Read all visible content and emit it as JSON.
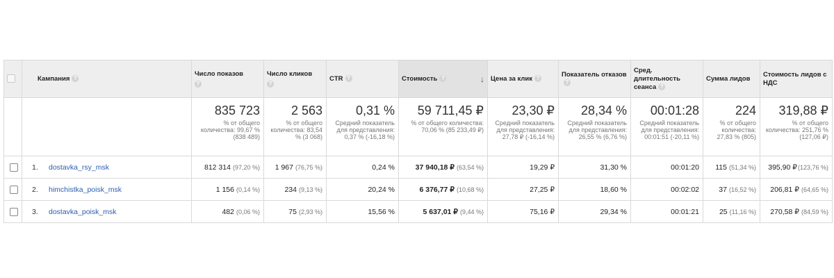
{
  "columns": {
    "campaign": "Кампания",
    "impressions": "Число показов",
    "clicks": "Число кликов",
    "ctr": "CTR",
    "cost": "Стоимость",
    "cpc": "Цена за клик",
    "bounce": "Показатель отказов",
    "duration": "Сред. длительность сеанса",
    "leads": "Сумма лидов",
    "lead_cost": "Стоимость лидов с НДС"
  },
  "totals": {
    "impressions": {
      "value": "835 723",
      "note": "% от общего количества: 99,67 % (838 489)"
    },
    "clicks": {
      "value": "2 563",
      "note": "% от общего количества: 83,54 % (3 068)"
    },
    "ctr": {
      "value": "0,31 %",
      "note": "Средний показатель для представления: 0,37 % (-16,18 %)"
    },
    "cost": {
      "value": "59 711,45 ₽",
      "note": "% от общего количества: 70,06 % (85 233,49 ₽)"
    },
    "cpc": {
      "value": "23,30 ₽",
      "note": "Средний показатель для представления: 27,78 ₽ (-16,14 %)"
    },
    "bounce": {
      "value": "28,34 %",
      "note": "Средний показатель для представления: 26,55 % (6,76 %)"
    },
    "duration": {
      "value": "00:01:28",
      "note": "Средний показатель для представления: 00:01:51 (-20,11 %)"
    },
    "leads": {
      "value": "224",
      "note": "% от общего количества: 27,83 % (805)"
    },
    "lead_cost": {
      "value": "319,88 ₽",
      "note": "% от общего количества: 251,76 % (127,06 ₽)"
    }
  },
  "rows": [
    {
      "num": "1.",
      "campaign": "dostavka_rsy_msk",
      "impressions": "812 314",
      "impressions_pct": "(97,20 %)",
      "clicks": "1 967",
      "clicks_pct": "(76,75 %)",
      "ctr": "0,24 %",
      "cost": "37 940,18 ₽",
      "cost_pct": "(63,54 %)",
      "cpc": "19,29 ₽",
      "bounce": "31,30 %",
      "duration": "00:01:20",
      "leads": "115",
      "leads_pct": "(51,34 %)",
      "lead_cost": "395,90 ₽",
      "lead_cost_pct": "(123,76 %)"
    },
    {
      "num": "2.",
      "campaign": "himchistka_poisk_msk",
      "impressions": "1 156",
      "impressions_pct": "(0,14 %)",
      "clicks": "234",
      "clicks_pct": "(9,13 %)",
      "ctr": "20,24 %",
      "cost": "6 376,77 ₽",
      "cost_pct": "(10,68 %)",
      "cpc": "27,25 ₽",
      "bounce": "18,60 %",
      "duration": "00:02:02",
      "leads": "37",
      "leads_pct": "(16,52 %)",
      "lead_cost": "206,81 ₽",
      "lead_cost_pct": "(64,65 %)"
    },
    {
      "num": "3.",
      "campaign": "dostavka_poisk_msk",
      "impressions": "482",
      "impressions_pct": "(0,06 %)",
      "clicks": "75",
      "clicks_pct": "(2,93 %)",
      "ctr": "15,56 %",
      "cost": "5 637,01 ₽",
      "cost_pct": "(9,44 %)",
      "cpc": "75,16 ₽",
      "bounce": "29,34 %",
      "duration": "00:01:21",
      "leads": "25",
      "leads_pct": "(11,16 %)",
      "lead_cost": "270,58 ₽",
      "lead_cost_pct": "(84,59 %)"
    }
  ]
}
